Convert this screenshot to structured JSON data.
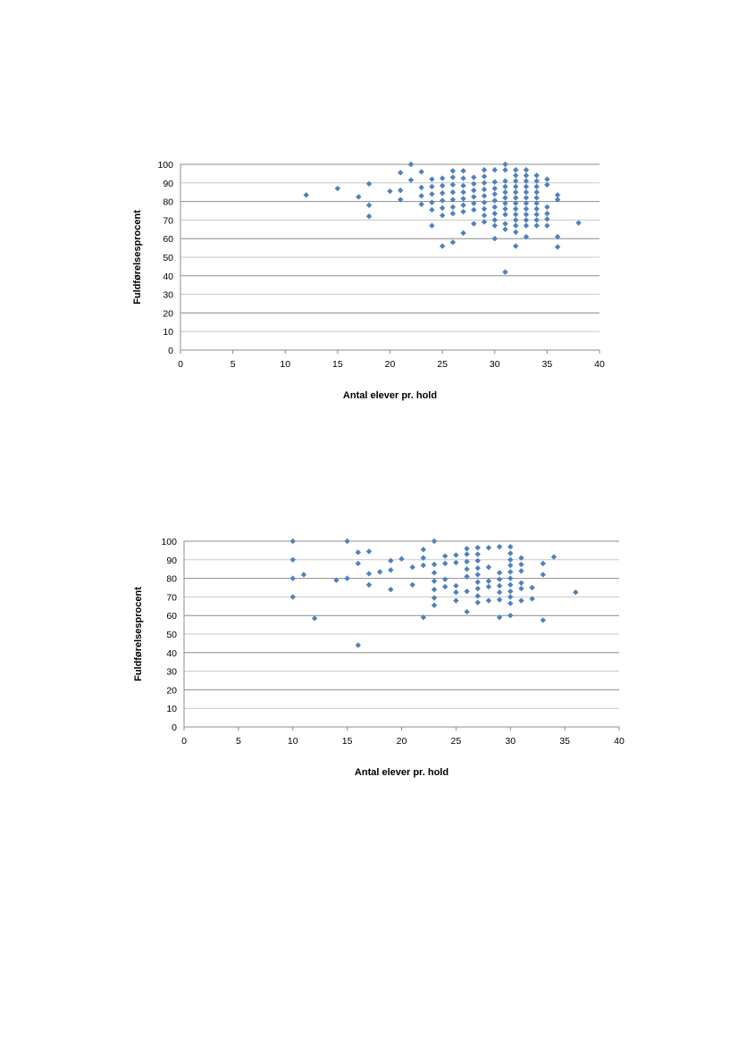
{
  "chart_data": [
    {
      "type": "scatter",
      "xlabel": "Antal elever pr. hold",
      "ylabel": "Fuldførelsesprocent",
      "xlim": [
        0,
        40
      ],
      "ylim": [
        0,
        100
      ],
      "x_ticks": [
        "0",
        "5",
        "10",
        "15",
        "20",
        "25",
        "30",
        "35",
        "40"
      ],
      "y_ticks": [
        "0",
        "10",
        "20",
        "30",
        "40",
        "50",
        "60",
        "70",
        "80",
        "90",
        "100"
      ],
      "grid": "horizontal",
      "marker_color": "#4F81BD",
      "points": [
        [
          12,
          83.5
        ],
        [
          15,
          87
        ],
        [
          17,
          82.5
        ],
        [
          18,
          89.5
        ],
        [
          18,
          78
        ],
        [
          18,
          72
        ],
        [
          20,
          85.5
        ],
        [
          21,
          95.5
        ],
        [
          21,
          86
        ],
        [
          21,
          81
        ],
        [
          22,
          100
        ],
        [
          22,
          91.5
        ],
        [
          23,
          96
        ],
        [
          23,
          87.5
        ],
        [
          23,
          83
        ],
        [
          23,
          78.5
        ],
        [
          24,
          92
        ],
        [
          24,
          88
        ],
        [
          24,
          84
        ],
        [
          24,
          79.5
        ],
        [
          24,
          75.5
        ],
        [
          24,
          67
        ],
        [
          25,
          92.5
        ],
        [
          25,
          88.5
        ],
        [
          25,
          84.5
        ],
        [
          25,
          80.5
        ],
        [
          25,
          76.5
        ],
        [
          25,
          72.5
        ],
        [
          25,
          56
        ],
        [
          26,
          96.5
        ],
        [
          26,
          93
        ],
        [
          26,
          89
        ],
        [
          26,
          85
        ],
        [
          26,
          81
        ],
        [
          26,
          77
        ],
        [
          26,
          73.5
        ],
        [
          26,
          58
        ],
        [
          27,
          96.5
        ],
        [
          27,
          92.5
        ],
        [
          27,
          88.5
        ],
        [
          27,
          85
        ],
        [
          27,
          81.5
        ],
        [
          27,
          78
        ],
        [
          27,
          74.5
        ],
        [
          27,
          63
        ],
        [
          28,
          93
        ],
        [
          28,
          89.5
        ],
        [
          28,
          86
        ],
        [
          28,
          82.5
        ],
        [
          28,
          79
        ],
        [
          28,
          75.5
        ],
        [
          28,
          68
        ],
        [
          29,
          97
        ],
        [
          29,
          93.5
        ],
        [
          29,
          90
        ],
        [
          29,
          86.5
        ],
        [
          29,
          83
        ],
        [
          29,
          79.5
        ],
        [
          29,
          76
        ],
        [
          29,
          72.5
        ],
        [
          29,
          69
        ],
        [
          30,
          97
        ],
        [
          30,
          90.5
        ],
        [
          30,
          87
        ],
        [
          30,
          84
        ],
        [
          30,
          80.5
        ],
        [
          30,
          77
        ],
        [
          30,
          73.5
        ],
        [
          30,
          70
        ],
        [
          30,
          67
        ],
        [
          30,
          60
        ],
        [
          31,
          100
        ],
        [
          31,
          97
        ],
        [
          31,
          91
        ],
        [
          31,
          88
        ],
        [
          31,
          85
        ],
        [
          31,
          82
        ],
        [
          31,
          79
        ],
        [
          31,
          76
        ],
        [
          31,
          73
        ],
        [
          31,
          68
        ],
        [
          31,
          65
        ],
        [
          31,
          42
        ],
        [
          32,
          97
        ],
        [
          32,
          94
        ],
        [
          32,
          91
        ],
        [
          32,
          88
        ],
        [
          32,
          85
        ],
        [
          32,
          82
        ],
        [
          32,
          79
        ],
        [
          32,
          76
        ],
        [
          32,
          73
        ],
        [
          32,
          70
        ],
        [
          32,
          67
        ],
        [
          32,
          63.5
        ],
        [
          32,
          56
        ],
        [
          33,
          97
        ],
        [
          33,
          94
        ],
        [
          33,
          91
        ],
        [
          33,
          88
        ],
        [
          33,
          85
        ],
        [
          33,
          82
        ],
        [
          33,
          79
        ],
        [
          33,
          76
        ],
        [
          33,
          73
        ],
        [
          33,
          70
        ],
        [
          33,
          67
        ],
        [
          33,
          61
        ],
        [
          34,
          94
        ],
        [
          34,
          91
        ],
        [
          34,
          88
        ],
        [
          34,
          85
        ],
        [
          34,
          82
        ],
        [
          34,
          79
        ],
        [
          34,
          76
        ],
        [
          34,
          73
        ],
        [
          34,
          70
        ],
        [
          34,
          67
        ],
        [
          35,
          92
        ],
        [
          35,
          89
        ],
        [
          35,
          77
        ],
        [
          35,
          73.5
        ],
        [
          35,
          70.5
        ],
        [
          35,
          67
        ],
        [
          36,
          83.5
        ],
        [
          36,
          81
        ],
        [
          36,
          61
        ],
        [
          36,
          55.5
        ],
        [
          38,
          68.5
        ]
      ]
    },
    {
      "type": "scatter",
      "xlabel": "Antal elever pr. hold",
      "ylabel": "Fuldførelsesprocent",
      "xlim": [
        0,
        40
      ],
      "ylim": [
        0,
        100
      ],
      "x_ticks": [
        "0",
        "5",
        "10",
        "15",
        "20",
        "25",
        "30",
        "35",
        "40"
      ],
      "y_ticks": [
        "0",
        "10",
        "20",
        "30",
        "40",
        "50",
        "60",
        "70",
        "80",
        "90",
        "100"
      ],
      "grid": "horizontal",
      "marker_color": "#4F81BD",
      "points": [
        [
          10,
          100
        ],
        [
          10,
          90
        ],
        [
          10,
          80
        ],
        [
          10,
          70
        ],
        [
          11,
          82
        ],
        [
          12,
          58.5
        ],
        [
          14,
          79
        ],
        [
          15,
          100
        ],
        [
          15,
          80
        ],
        [
          16,
          94
        ],
        [
          16,
          88
        ],
        [
          16,
          44
        ],
        [
          17,
          94.5
        ],
        [
          17,
          82.5
        ],
        [
          17,
          76.5
        ],
        [
          18,
          83.5
        ],
        [
          19,
          89.5
        ],
        [
          19,
          84.5
        ],
        [
          19,
          74
        ],
        [
          20,
          90.5
        ],
        [
          21,
          86
        ],
        [
          21,
          76.5
        ],
        [
          22,
          95.5
        ],
        [
          22,
          91
        ],
        [
          22,
          87
        ],
        [
          22,
          59
        ],
        [
          23,
          100
        ],
        [
          23,
          87.5
        ],
        [
          23,
          83
        ],
        [
          23,
          78.5
        ],
        [
          23,
          74
        ],
        [
          23,
          69.5
        ],
        [
          23,
          65.5
        ],
        [
          24,
          92
        ],
        [
          24,
          88
        ],
        [
          24,
          79.5
        ],
        [
          24,
          75.5
        ],
        [
          25,
          92.5
        ],
        [
          25,
          88.5
        ],
        [
          25,
          76
        ],
        [
          25,
          72.5
        ],
        [
          25,
          68
        ],
        [
          26,
          96
        ],
        [
          26,
          93
        ],
        [
          26,
          89
        ],
        [
          26,
          85
        ],
        [
          26,
          81
        ],
        [
          26,
          73
        ],
        [
          26,
          62
        ],
        [
          27,
          96.5
        ],
        [
          27,
          93
        ],
        [
          27,
          89.5
        ],
        [
          27,
          85.5
        ],
        [
          27,
          82
        ],
        [
          27,
          78
        ],
        [
          27,
          74.5
        ],
        [
          27,
          70.5
        ],
        [
          27,
          67
        ],
        [
          28,
          96.5
        ],
        [
          28,
          86
        ],
        [
          28,
          78.5
        ],
        [
          28,
          75.5
        ],
        [
          28,
          68
        ],
        [
          29,
          97
        ],
        [
          29,
          83
        ],
        [
          29,
          79.5
        ],
        [
          29,
          76
        ],
        [
          29,
          72.5
        ],
        [
          29,
          68.5
        ],
        [
          29,
          59
        ],
        [
          30,
          97
        ],
        [
          30,
          93.5
        ],
        [
          30,
          90
        ],
        [
          30,
          87
        ],
        [
          30,
          83.5
        ],
        [
          30,
          80
        ],
        [
          30,
          76.5
        ],
        [
          30,
          73
        ],
        [
          30,
          70
        ],
        [
          30,
          66.5
        ],
        [
          30,
          60
        ],
        [
          31,
          91
        ],
        [
          31,
          87.5
        ],
        [
          31,
          84
        ],
        [
          31,
          77.5
        ],
        [
          31,
          74.5
        ],
        [
          31,
          68
        ],
        [
          32,
          75
        ],
        [
          32,
          69
        ],
        [
          33,
          88
        ],
        [
          33,
          82
        ],
        [
          33,
          57.5
        ],
        [
          34,
          91.5
        ],
        [
          36,
          72.5
        ]
      ]
    }
  ]
}
